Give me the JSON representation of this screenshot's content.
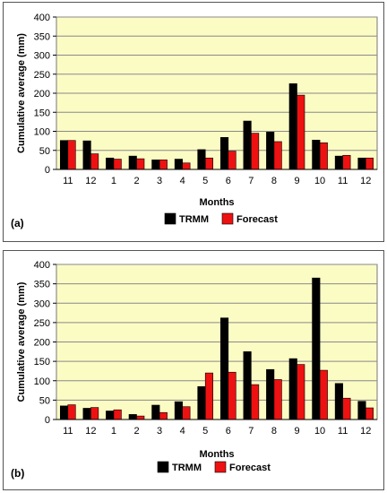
{
  "colors": {
    "plot_bg": "#fbfbc4",
    "trmm": "#000000",
    "forecast": "#ee1111",
    "grid": "#8a8a8a"
  },
  "chart_data": [
    {
      "type": "bar",
      "panel_label": "(a)",
      "xlabel": "Months",
      "ylabel": "Cumulative average (mm)",
      "ylim": [
        0,
        400
      ],
      "yticks": [
        "0",
        "50",
        "100",
        "150",
        "200",
        "250",
        "300",
        "350",
        "400"
      ],
      "grid": true,
      "legend_position": "bottom-right",
      "categories": [
        "11",
        "12",
        "1",
        "2",
        "3",
        "4",
        "5",
        "6",
        "7",
        "8",
        "9",
        "10",
        "11",
        "12"
      ],
      "series": [
        {
          "name": "TRMM",
          "values": [
            76,
            75,
            30,
            35,
            25,
            27,
            52,
            84,
            127,
            98,
            225,
            77,
            35,
            30
          ]
        },
        {
          "name": "Forecast",
          "values": [
            76,
            41,
            27,
            28,
            25,
            17,
            30,
            48,
            95,
            73,
            195,
            70,
            37,
            30
          ]
        }
      ]
    },
    {
      "type": "bar",
      "panel_label": "(b)",
      "xlabel": "Months",
      "ylabel": "Cumulative average (mm)",
      "ylim": [
        0,
        400
      ],
      "yticks": [
        "0",
        "50",
        "100",
        "150",
        "200",
        "250",
        "300",
        "350",
        "400"
      ],
      "grid": true,
      "legend_position": "bottom-right",
      "categories": [
        "11",
        "12",
        "1",
        "2",
        "3",
        "4",
        "5",
        "6",
        "7",
        "8",
        "9",
        "10",
        "11",
        "12"
      ],
      "series": [
        {
          "name": "TRMM",
          "values": [
            35,
            29,
            22,
            13,
            37,
            46,
            85,
            262,
            175,
            129,
            157,
            365,
            93,
            47
          ]
        },
        {
          "name": "Forecast",
          "values": [
            38,
            31,
            25,
            9,
            18,
            33,
            120,
            122,
            90,
            103,
            142,
            127,
            55,
            30
          ]
        }
      ]
    }
  ]
}
